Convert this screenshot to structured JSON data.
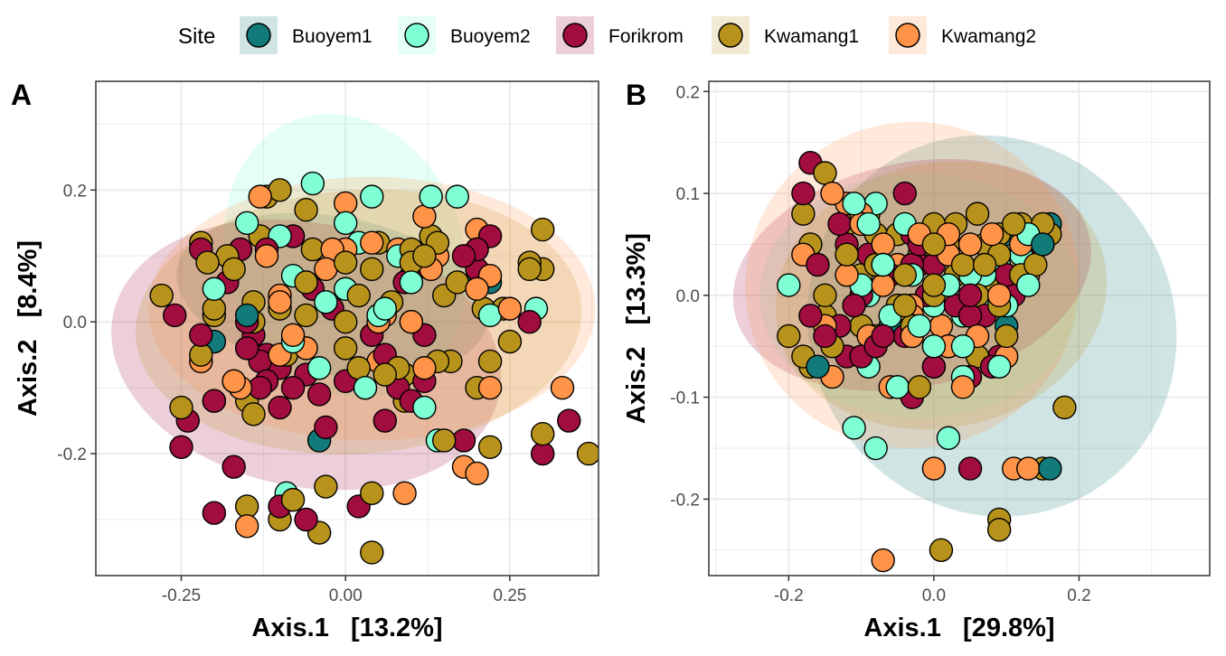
{
  "legend": {
    "title": "Site",
    "items": [
      {
        "label": "Buoyem1",
        "color": "#137a7a"
      },
      {
        "label": "Buoyem2",
        "color": "#7fffd4"
      },
      {
        "label": "Forikrom",
        "color": "#a10d3f"
      },
      {
        "label": "Kwamang1",
        "color": "#b8931c"
      },
      {
        "label": "Kwamang2",
        "color": "#ff9348"
      }
    ]
  },
  "chart_data": [
    {
      "type": "scatter",
      "panel_label": "A",
      "xlabel": "Axis.1   [13.2%]",
      "ylabel": "Axis.2   [8.4%]",
      "xlim": [
        -0.38,
        0.385
      ],
      "ylim": [
        -0.385,
        0.365
      ],
      "xticks": [
        -0.25,
        0.0,
        0.25
      ],
      "xtick_labels": [
        "-0.25",
        "0.00",
        "0.25"
      ],
      "yticks": [
        -0.2,
        0.0,
        0.2
      ],
      "ytick_labels": [
        "-0.2",
        "0.0",
        "0.2"
      ],
      "grid": true,
      "ellipses": [
        {
          "site": "Buoyem1",
          "cx": -0.02,
          "cy": 0.04,
          "rx": 0.24,
          "ry": 0.12,
          "rotate": 10
        },
        {
          "site": "Buoyem2",
          "cx": 0.0,
          "cy": 0.1,
          "rx": 0.18,
          "ry": 0.22,
          "rotate": -20
        },
        {
          "site": "Forikrom",
          "cx": -0.06,
          "cy": -0.05,
          "rx": 0.3,
          "ry": 0.2,
          "rotate": 12
        },
        {
          "site": "Kwamang1",
          "cx": 0.02,
          "cy": 0.0,
          "rx": 0.34,
          "ry": 0.2,
          "rotate": -4
        },
        {
          "site": "Kwamang2",
          "cx": 0.04,
          "cy": 0.02,
          "rx": 0.34,
          "ry": 0.2,
          "rotate": 0
        }
      ],
      "series": [
        {
          "name": "Buoyem1",
          "x": [
            0.2,
            -0.15,
            0.1,
            -0.2,
            0.22,
            -0.04
          ],
          "y": [
            0.06,
            0.01,
            0.0,
            -0.03,
            0.06,
            -0.18
          ]
        },
        {
          "name": "Buoyem2",
          "x": [
            -0.05,
            0.04,
            0.13,
            0.17,
            -0.15,
            -0.1,
            0.0,
            0.02,
            0.08,
            0.1,
            -0.08,
            -0.06,
            -0.03,
            0.0,
            0.06,
            0.05,
            0.29,
            0.22,
            -0.2,
            0.12,
            0.14,
            -0.08,
            -0.04,
            0.03,
            -0.09
          ],
          "y": [
            0.21,
            0.19,
            0.19,
            0.19,
            0.15,
            0.13,
            0.15,
            0.12,
            0.1,
            0.06,
            0.07,
            0.06,
            0.03,
            0.05,
            0.02,
            0.01,
            0.02,
            0.01,
            0.05,
            -0.13,
            -0.18,
            -0.03,
            -0.07,
            -0.1,
            -0.26
          ]
        },
        {
          "name": "Forikrom",
          "x": [
            -0.26,
            -0.22,
            -0.16,
            -0.14,
            -0.08,
            -0.05,
            0.1,
            0.18,
            0.22,
            -0.18,
            -0.15,
            -0.12,
            -0.1,
            -0.06,
            0.04,
            0.06,
            0.12,
            -0.22,
            -0.17,
            -0.13,
            -0.12,
            -0.1,
            -0.08,
            -0.04,
            0.0,
            0.03,
            0.08,
            0.12,
            0.18,
            0.2,
            0.3,
            -0.24,
            -0.25,
            -0.2,
            -0.17,
            -0.1,
            -0.06,
            0.02,
            0.06,
            0.1,
            -0.2,
            -0.03,
            0.09,
            0.2,
            0.28,
            0.34,
            -0.15,
            -0.13,
            -0.02,
            -0.12
          ],
          "y": [
            0.01,
            0.11,
            0.11,
            -0.02,
            0.13,
            0.05,
            0.07,
            0.1,
            0.13,
            0.06,
            0.0,
            -0.05,
            -0.07,
            -0.08,
            -0.02,
            -0.05,
            -0.02,
            -0.02,
            -0.09,
            -0.1,
            -0.09,
            -0.13,
            -0.1,
            -0.11,
            -0.09,
            -0.1,
            -0.1,
            -0.09,
            -0.18,
            0.08,
            -0.2,
            -0.15,
            -0.19,
            -0.12,
            -0.22,
            -0.28,
            -0.3,
            -0.28,
            -0.15,
            -0.12,
            -0.29,
            -0.16,
            0.06,
            0.11,
            0.0,
            -0.15,
            -0.04,
            -0.06,
            0.02,
            0.11
          ]
        },
        {
          "name": "Kwamang1",
          "x": [
            -0.28,
            -0.22,
            -0.18,
            -0.13,
            -0.1,
            -0.08,
            -0.05,
            0.0,
            0.05,
            0.1,
            0.13,
            0.17,
            0.2,
            0.24,
            0.28,
            -0.21,
            -0.17,
            -0.14,
            -0.06,
            0.02,
            0.07,
            0.15,
            0.21,
            0.25,
            -0.2,
            -0.14,
            -0.06,
            0.0,
            0.08,
            0.14,
            0.22,
            -0.22,
            -0.15,
            -0.09,
            0.02,
            0.09,
            0.2,
            -0.2,
            -0.14,
            0.06,
            0.15,
            0.3,
            -0.25,
            -0.15,
            -0.08,
            -0.03,
            0.04,
            0.09,
            0.16,
            0.3,
            -0.2,
            -0.1,
            0.0,
            0.1,
            0.14,
            0.28,
            0.37,
            -0.12,
            -0.06,
            0.04,
            -0.1,
            0.04,
            -0.04,
            0.22,
            0.3,
            0.12
          ],
          "y": [
            0.04,
            0.12,
            0.1,
            0.13,
            0.2,
            0.13,
            0.11,
            0.09,
            0.12,
            0.11,
            0.13,
            0.06,
            0.11,
            0.02,
            0.08,
            0.09,
            0.08,
            0.03,
            0.06,
            0.04,
            0.03,
            0.04,
            0.02,
            -0.03,
            0.01,
            0.0,
            0.01,
            -0.04,
            -0.07,
            -0.06,
            -0.06,
            -0.05,
            -0.12,
            -0.05,
            -0.07,
            -0.08,
            -0.1,
            -0.12,
            -0.14,
            -0.08,
            -0.18,
            0.14,
            -0.13,
            -0.28,
            -0.27,
            -0.25,
            -0.26,
            -0.12,
            -0.06,
            0.08,
            0.02,
            0.02,
            0.0,
            0.09,
            0.12,
            0.09,
            -0.2,
            0.19,
            0.17,
            0.08,
            -0.3,
            -0.35,
            -0.32,
            -0.19,
            -0.17,
            0.1
          ]
        },
        {
          "name": "Kwamang2",
          "x": [
            -0.13,
            0.0,
            0.12,
            0.2,
            0.25,
            -0.12,
            -0.02,
            0.08,
            0.14,
            0.2,
            -0.1,
            0.0,
            0.1,
            0.22,
            -0.22,
            -0.16,
            -0.06,
            0.05,
            0.18,
            -0.17,
            -0.08,
            0.05,
            0.12,
            0.22,
            0.33,
            -0.15,
            0.09,
            0.2,
            -0.03,
            -0.1,
            0.04,
            0.13,
            0.06,
            -0.1
          ],
          "y": [
            0.19,
            0.18,
            0.16,
            0.14,
            0.02,
            0.1,
            0.11,
            0.11,
            0.1,
            0.05,
            0.04,
            0.11,
            0.0,
            0.07,
            -0.06,
            -0.1,
            -0.04,
            -0.06,
            -0.22,
            -0.09,
            -0.02,
            0.0,
            -0.07,
            -0.1,
            -0.1,
            -0.31,
            -0.26,
            -0.23,
            0.08,
            0.03,
            0.12,
            0.08,
            0.01,
            -0.05
          ]
        }
      ]
    },
    {
      "type": "scatter",
      "panel_label": "B",
      "xlabel": "Axis.1   [29.8%]",
      "ylabel": "Axis.2   [13.3%]",
      "xlim": [
        -0.31,
        0.38
      ],
      "ylim": [
        -0.275,
        0.21
      ],
      "xticks": [
        -0.2,
        0.0,
        0.2
      ],
      "xtick_labels": [
        "-0.2",
        "0.0",
        "0.2"
      ],
      "yticks": [
        -0.2,
        -0.1,
        0.0,
        0.1,
        0.2
      ],
      "ytick_labels": [
        "-0.2",
        "-0.1",
        "0.0",
        "0.1",
        "0.2"
      ],
      "grid": true,
      "ellipses": [
        {
          "site": "Buoyem1",
          "cx": 0.08,
          "cy": -0.03,
          "rx": 0.25,
          "ry": 0.19,
          "rotate": -30
        },
        {
          "site": "Buoyem2",
          "cx": -0.02,
          "cy": 0.0,
          "rx": 0.22,
          "ry": 0.12,
          "rotate": 0
        },
        {
          "site": "Forikrom",
          "cx": -0.03,
          "cy": 0.02,
          "rx": 0.25,
          "ry": 0.11,
          "rotate": -12
        },
        {
          "site": "Kwamang1",
          "cx": 0.01,
          "cy": 0.0,
          "rx": 0.23,
          "ry": 0.13,
          "rotate": -12
        },
        {
          "site": "Kwamang2",
          "cx": -0.03,
          "cy": 0.01,
          "rx": 0.23,
          "ry": 0.16,
          "rotate": -15
        }
      ],
      "series": [
        {
          "name": "Buoyem1",
          "x": [
            0.1,
            0.15,
            0.16,
            0.1,
            0.16,
            -0.16,
            -0.06
          ],
          "y": [
            0.06,
            0.05,
            0.07,
            -0.03,
            -0.17,
            -0.07,
            -0.03
          ]
        },
        {
          "name": "Buoyem2",
          "x": [
            -0.11,
            -0.09,
            -0.08,
            -0.04,
            -0.03,
            -0.2,
            -0.09,
            0.0,
            0.02,
            0.05,
            0.09,
            -0.1,
            -0.06,
            -0.02,
            0.0,
            0.04,
            0.1,
            0.13,
            -0.09,
            -0.05,
            0.0,
            0.04,
            0.09,
            -0.08,
            -0.05,
            0.04,
            0.08,
            -0.11,
            0.02,
            0.15,
            0.12,
            -0.07,
            0.07,
            -0.03,
            0.13
          ],
          "y": [
            0.09,
            0.07,
            0.09,
            0.07,
            0.02,
            0.01,
            0.0,
            -0.01,
            0.01,
            0.02,
            0.03,
            0.01,
            -0.02,
            -0.03,
            -0.05,
            -0.02,
            -0.01,
            0.01,
            -0.07,
            -0.09,
            -0.07,
            -0.08,
            -0.07,
            -0.15,
            -0.09,
            -0.05,
            -0.01,
            -0.13,
            -0.14,
            0.05,
            0.04,
            0.03,
            0.02,
            -0.04,
            0.06
          ]
        },
        {
          "name": "Forikrom",
          "x": [
            -0.17,
            -0.18,
            -0.13,
            -0.16,
            -0.12,
            -0.09,
            -0.07,
            -0.04,
            -0.03,
            0.0,
            0.02,
            0.05,
            0.1,
            0.13,
            -0.17,
            -0.13,
            -0.1,
            -0.06,
            -0.02,
            0.03,
            0.07,
            0.11,
            -0.15,
            -0.12,
            -0.08,
            -0.04,
            0.0,
            0.05,
            0.08,
            -0.1,
            -0.07,
            -0.01,
            0.05,
            0.05,
            -0.03,
            0.14,
            0.09,
            -0.03,
            -0.11,
            -0.02
          ],
          "y": [
            0.13,
            0.1,
            0.07,
            0.03,
            0.05,
            0.04,
            0.03,
            0.1,
            0.06,
            0.03,
            0.01,
            0.0,
            0.02,
            0.05,
            -0.02,
            -0.03,
            0.0,
            0.02,
            0.03,
            -0.01,
            -0.02,
            0.0,
            -0.04,
            -0.06,
            -0.05,
            -0.04,
            -0.07,
            -0.08,
            -0.07,
            -0.06,
            -0.04,
            0.0,
            -0.02,
            -0.17,
            0.03,
            0.06,
            -0.06,
            -0.1,
            -0.01,
            0.05
          ]
        },
        {
          "name": "Kwamang1",
          "x": [
            -0.18,
            -0.15,
            -0.12,
            -0.09,
            -0.05,
            -0.02,
            0.0,
            0.03,
            0.06,
            0.09,
            0.12,
            0.16,
            -0.17,
            -0.12,
            -0.08,
            -0.04,
            0.0,
            0.04,
            0.09,
            0.13,
            -0.2,
            -0.15,
            -0.1,
            -0.05,
            0.0,
            0.05,
            0.09,
            -0.18,
            -0.14,
            -0.08,
            -0.03,
            0.02,
            0.06,
            0.1,
            -0.08,
            0.0,
            0.07,
            0.11,
            0.14,
            -0.15,
            -0.1,
            -0.04,
            0.03,
            0.07,
            0.12,
            0.15,
            -0.17,
            -0.05,
            0.02,
            0.06,
            0.18,
            -0.02,
            0.09,
            0.09,
            0.15,
            0.01,
            0.08
          ],
          "y": [
            0.08,
            0.12,
            0.07,
            0.08,
            0.06,
            0.04,
            0.05,
            0.07,
            0.08,
            0.06,
            0.07,
            0.06,
            0.05,
            0.04,
            0.03,
            0.02,
            0.01,
            0.03,
            0.04,
            0.06,
            -0.04,
            -0.02,
            -0.03,
            -0.01,
            0.0,
            -0.02,
            -0.01,
            -0.06,
            -0.05,
            -0.04,
            -0.03,
            -0.05,
            -0.06,
            -0.04,
            0.06,
            0.07,
            0.05,
            0.07,
            0.03,
            0.0,
            0.02,
            -0.01,
            0.02,
            0.03,
            0.02,
            0.07,
            -0.07,
            -0.03,
            0.05,
            0.0,
            -0.11,
            -0.09,
            -0.22,
            -0.23,
            -0.17,
            -0.25,
            0.01
          ]
        },
        {
          "name": "Kwamang2",
          "x": [
            -0.14,
            -0.12,
            -0.1,
            -0.07,
            -0.05,
            -0.02,
            0.02,
            0.05,
            0.08,
            0.12,
            0.15,
            -0.18,
            -0.12,
            -0.07,
            -0.03,
            0.01,
            0.05,
            0.09,
            0.13,
            -0.15,
            -0.09,
            -0.03,
            0.02,
            0.06,
            0.1,
            -0.14,
            -0.06,
            0.0,
            0.04,
            -0.1,
            0.02,
            -0.03,
            0.11,
            0.13,
            -0.07
          ],
          "y": [
            0.1,
            0.09,
            0.07,
            0.05,
            0.03,
            0.06,
            0.04,
            0.05,
            0.06,
            0.05,
            0.06,
            0.04,
            0.02,
            0.01,
            -0.01,
            -0.03,
            -0.02,
            0.0,
            0.02,
            -0.03,
            -0.04,
            -0.02,
            -0.05,
            -0.04,
            -0.06,
            -0.08,
            -0.09,
            -0.17,
            -0.09,
            0.08,
            0.06,
            -0.04,
            -0.17,
            -0.17,
            -0.26
          ]
        }
      ]
    }
  ]
}
